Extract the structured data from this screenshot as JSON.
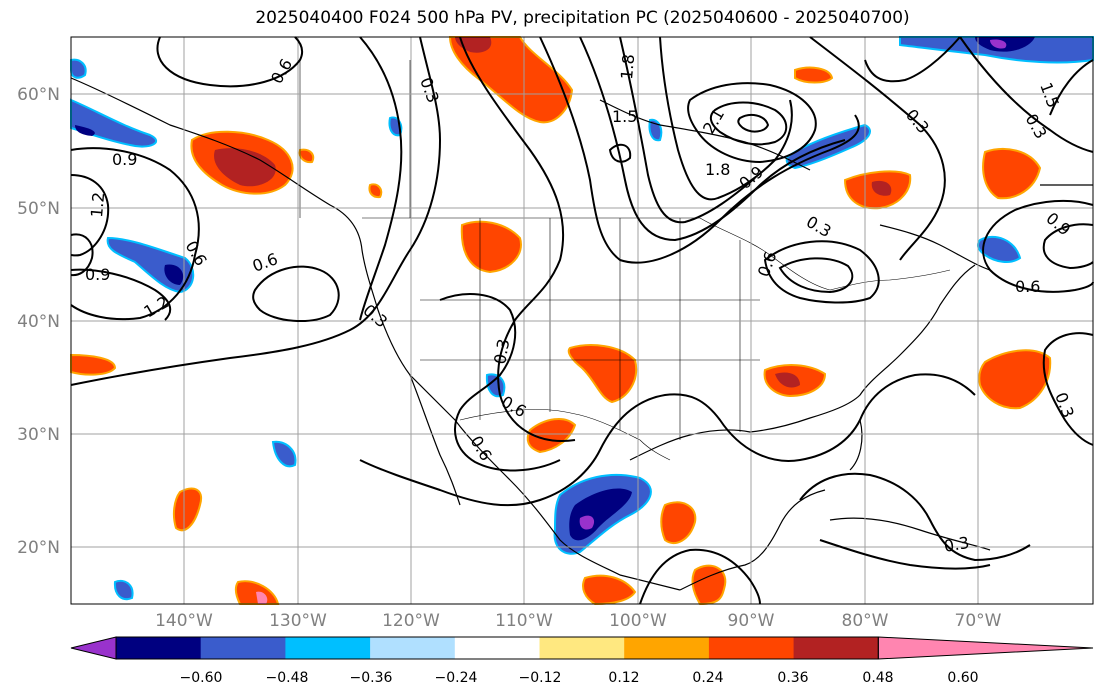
{
  "title": "2025040400 F024 500 hPa PV, precipitation PC (2025040600 - 2025040700)",
  "map": {
    "lat_ticks": [
      "60°N",
      "50°N",
      "40°N",
      "30°N",
      "20°N"
    ],
    "lon_ticks": [
      "140°W",
      "130°W",
      "120°W",
      "110°W",
      "100°W",
      "90°W",
      "80°W",
      "70°W"
    ],
    "contour_labels": [
      "0.3",
      "0.6",
      "0.9",
      "1.2",
      "1.5",
      "1.8",
      "2.1",
      "0.6",
      "0.9",
      "1.2",
      "0.6",
      "0.3",
      "0.3",
      "0.6",
      "0.3",
      "0.9",
      "0.6",
      "0.3",
      "1.5",
      "0.3",
      "0.9",
      "0.6",
      "0.3",
      "0.3",
      "0.6",
      "1.8"
    ]
  },
  "colorbar": {
    "ticks": [
      "−0.60",
      "−0.48",
      "−0.36",
      "−0.24",
      "−0.12",
      "0.12",
      "0.24",
      "0.36",
      "0.48",
      "0.60"
    ],
    "colors": [
      "#9932cc",
      "#000080",
      "#3a5ccc",
      "#00bfff",
      "#b0e0ff",
      "#ffffff",
      "#ffe880",
      "#ffa500",
      "#ff4500",
      "#b22222",
      "#ff85b0"
    ]
  },
  "colors": {
    "neg_strong": "#000080",
    "neg_mid": "#3a5ccc",
    "neg_light": "#00bfff",
    "pos_light": "#ffe880",
    "pos_mid": "#ff4500",
    "pos_strong": "#b22222",
    "pos_extreme": "#ff85b0",
    "purple": "#9932cc"
  }
}
